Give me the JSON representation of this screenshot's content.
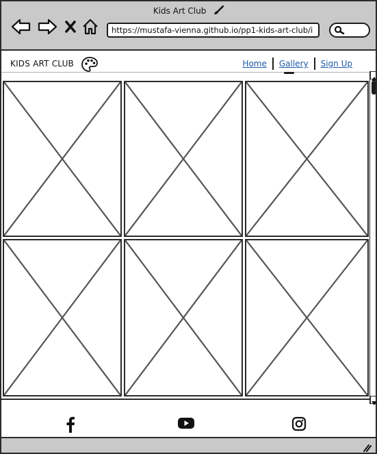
{
  "window": {
    "title": "Kids Art Club",
    "title_icon": "paintbrush-icon"
  },
  "browser": {
    "url": "https://mustafa-vienna.github.io/pp1-kids-art-club/i",
    "icons": [
      "back-arrow-icon",
      "forward-arrow-icon",
      "close-icon",
      "home-icon",
      "search-icon"
    ]
  },
  "site": {
    "logo": "KIDS ART CLUB",
    "logo_icon": "palette-icon",
    "nav": [
      {
        "label": "Home",
        "active": false
      },
      {
        "label": "Gallery",
        "active": true
      },
      {
        "label": "Sign Up",
        "active": false
      }
    ]
  },
  "gallery": {
    "tile_count": 6,
    "tile_icon": "image-placeholder-icon"
  },
  "footer": {
    "icons": [
      "facebook-icon",
      "youtube-icon",
      "instagram-icon"
    ]
  },
  "colors": {
    "chrome": "#c9c9c9",
    "link": "#1f5aa8",
    "stroke": "#2b2b2b"
  }
}
